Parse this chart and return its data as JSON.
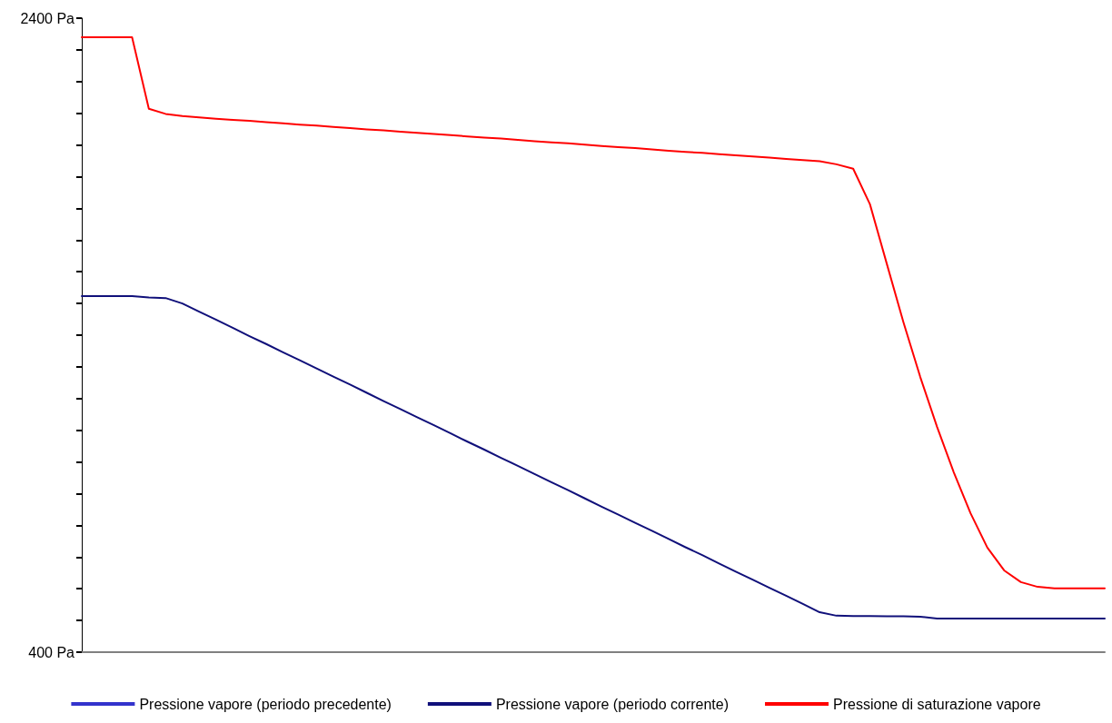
{
  "chart_data": {
    "type": "line",
    "categories": [
      null,
      null,
      null,
      null,
      null,
      null,
      null,
      null,
      null,
      null,
      null,
      null,
      null,
      null,
      null,
      null,
      null,
      null,
      null,
      null,
      null,
      null,
      null,
      null,
      null,
      null,
      null,
      null,
      null,
      null,
      null,
      null,
      null,
      null,
      null,
      null,
      null,
      null,
      null,
      null,
      null,
      null,
      null,
      null,
      null,
      null,
      null,
      null,
      null,
      null,
      null,
      null,
      null,
      null,
      null,
      null,
      null,
      null,
      null,
      null,
      null,
      null
    ],
    "tick_labels": "y",
    "ylim": [
      400,
      2400
    ],
    "yticks": [
      {
        "value": 400,
        "label": "400 Pa"
      },
      {
        "value": 500,
        "label": null
      },
      {
        "value": 600,
        "label": null
      },
      {
        "value": 700,
        "label": null
      },
      {
        "value": 800,
        "label": null
      },
      {
        "value": 900,
        "label": null
      },
      {
        "value": 1000,
        "label": null
      },
      {
        "value": 1100,
        "label": null
      },
      {
        "value": 1200,
        "label": null
      },
      {
        "value": 1300,
        "label": null
      },
      {
        "value": 1400,
        "label": null
      },
      {
        "value": 1500,
        "label": null
      },
      {
        "value": 1600,
        "label": null
      },
      {
        "value": 1700,
        "label": null
      },
      {
        "value": 1800,
        "label": null
      },
      {
        "value": 1900,
        "label": null
      },
      {
        "value": 2000,
        "label": null
      },
      {
        "value": 2100,
        "label": null
      },
      {
        "value": 2200,
        "label": null
      },
      {
        "value": 2300,
        "label": null
      },
      {
        "value": 2400,
        "label": "2400 Pa"
      }
    ],
    "grid": false,
    "legend": "bottom",
    "marker": "none",
    "series": [
      {
        "name": "Pressione vapore (periodo precedente)",
        "color": "#3333cc",
        "line_style": "dashed",
        "values": [
          null,
          null,
          null,
          null,
          null,
          null,
          null,
          null,
          null,
          null,
          null,
          null,
          null,
          null,
          null,
          null,
          null,
          null,
          null,
          null,
          null,
          null,
          null,
          null,
          null,
          null,
          null,
          null,
          null,
          null,
          null,
          null,
          null,
          null,
          null,
          null,
          null,
          null,
          null,
          null,
          null,
          null,
          null,
          null,
          null,
          null,
          null,
          null,
          null,
          null,
          null,
          null,
          null,
          null,
          null,
          null,
          null,
          null,
          null,
          null,
          null,
          null
        ]
      },
      {
        "name": "Pressione vapore (periodo corrente)",
        "color": "#10107a",
        "line_style": "solid",
        "values": [
          1523,
          1523,
          1523,
          1523,
          1519,
          1517,
          1500,
          1474,
          1449,
          1423,
          1397,
          1372,
          1346,
          1321,
          1295,
          1269,
          1244,
          1218,
          1192,
          1167,
          1141,
          1116,
          1090,
          1064,
          1039,
          1013,
          988,
          962,
          936,
          911,
          885,
          859,
          834,
          808,
          783,
          757,
          731,
          706,
          680,
          654,
          629,
          603,
          578,
          552,
          526,
          515,
          514,
          514,
          513,
          513,
          512,
          506,
          506,
          506,
          506,
          506,
          506,
          506,
          506,
          506,
          506,
          506
        ]
      },
      {
        "name": "Pressione di saturazione vapore",
        "color": "#ff0000",
        "line_style": "solid",
        "values": [
          2340,
          2340,
          2340,
          2340,
          2114,
          2098,
          2091,
          2087,
          2083,
          2079,
          2076,
          2072,
          2068,
          2064,
          2061,
          2057,
          2053,
          2049,
          2046,
          2042,
          2038,
          2035,
          2031,
          2027,
          2023,
          2020,
          2016,
          2012,
          2008,
          2005,
          2001,
          1997,
          1993,
          1990,
          1986,
          1982,
          1978,
          1975,
          1971,
          1967,
          1964,
          1960,
          1956,
          1952,
          1949,
          1939,
          1925,
          1813,
          1626,
          1440,
          1268,
          1111,
          967,
          838,
          730,
          658,
          621,
          606,
          601,
          601,
          601,
          601
        ]
      }
    ]
  }
}
